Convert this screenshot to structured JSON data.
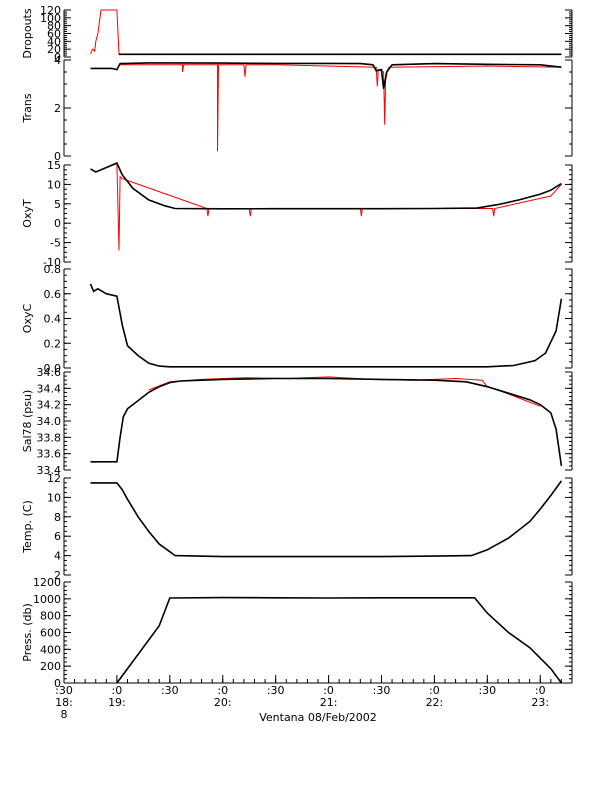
{
  "xlabel": "Ventana 08/Feb/2002",
  "colors": {
    "qc": "#ff0000",
    "data": "#000000",
    "axis": "#000000"
  },
  "x_ticks": [
    {
      "t": 18.5,
      "top": ":30",
      "mid": "18:",
      "bot": "8"
    },
    {
      "t": 19.0,
      "top": ":0",
      "mid": "19:",
      "bot": ""
    },
    {
      "t": 19.5,
      "top": ":30",
      "mid": "",
      "bot": ""
    },
    {
      "t": 20.0,
      "top": ":0",
      "mid": "20:",
      "bot": ""
    },
    {
      "t": 20.5,
      "top": ":30",
      "mid": "",
      "bot": ""
    },
    {
      "t": 21.0,
      "top": ":0",
      "mid": "21:",
      "bot": ""
    },
    {
      "t": 21.5,
      "top": ":30",
      "mid": "",
      "bot": ""
    },
    {
      "t": 22.0,
      "top": ":0",
      "mid": "22:",
      "bot": ""
    },
    {
      "t": 22.5,
      "top": ":30",
      "mid": "",
      "bot": ""
    },
    {
      "t": 23.0,
      "top": ":0",
      "mid": "23:",
      "bot": ""
    }
  ],
  "chart_data": [
    {
      "type": "line",
      "ylabel": "Dropouts",
      "ylim": [
        0,
        120
      ],
      "yticks": [
        0,
        20,
        40,
        60,
        80,
        100,
        120
      ],
      "yticklabels": [
        "0",
        "20",
        "40",
        "60",
        "80",
        "100",
        "120"
      ],
      "series": [
        {
          "role": "qc",
          "x": [
            18.75,
            18.77,
            18.79,
            18.8,
            18.82,
            18.85,
            18.95,
            18.98,
            19.0,
            19.02,
            19.6,
            20.8,
            21.5,
            22.2,
            23.2
          ],
          "y": [
            8,
            20,
            15,
            40,
            60,
            120,
            120,
            120,
            120,
            7,
            7,
            7,
            7,
            7,
            7
          ]
        },
        {
          "role": "data",
          "x": [
            19.02,
            19.5,
            20.0,
            20.5,
            21.0,
            21.5,
            22.0,
            22.5,
            23.0,
            23.2
          ],
          "y": [
            7,
            7,
            7,
            7,
            7,
            7,
            7,
            7,
            7,
            7
          ]
        }
      ]
    },
    {
      "type": "line",
      "ylabel": "Trans",
      "ylim": [
        0,
        4
      ],
      "yticks": [
        0,
        2,
        4
      ],
      "yticklabels": [
        "0",
        "2",
        "4"
      ],
      "series": [
        {
          "role": "qc",
          "x": [
            19.02,
            19.62,
            19.62,
            19.63,
            19.95,
            19.95,
            19.96,
            20.2,
            20.21,
            20.22,
            20.5,
            21.45,
            21.46,
            21.47,
            21.52,
            21.53,
            21.54,
            21.56,
            21.57,
            22.5,
            23.2
          ],
          "y": [
            3.8,
            3.8,
            3.5,
            3.8,
            3.8,
            0.2,
            3.8,
            3.8,
            3.3,
            3.8,
            3.8,
            3.7,
            2.9,
            3.6,
            3.5,
            1.3,
            3.4,
            3.6,
            3.7,
            3.75,
            3.7
          ]
        },
        {
          "role": "data",
          "x": [
            18.75,
            18.95,
            19.0,
            19.03,
            19.3,
            19.5,
            20.0,
            20.5,
            21.0,
            21.3,
            21.42,
            21.45,
            21.5,
            21.52,
            21.55,
            21.6,
            22.0,
            22.5,
            23.0,
            23.2
          ],
          "y": [
            3.65,
            3.65,
            3.6,
            3.85,
            3.88,
            3.88,
            3.87,
            3.86,
            3.86,
            3.85,
            3.8,
            3.55,
            3.6,
            2.8,
            3.5,
            3.8,
            3.85,
            3.82,
            3.8,
            3.7
          ]
        }
      ]
    },
    {
      "type": "line",
      "ylabel": "OxyT",
      "ylim": [
        -10,
        15
      ],
      "yticks": [
        -10,
        -5,
        0,
        5,
        10,
        15
      ],
      "yticklabels": [
        "-10",
        "-5",
        "0",
        "5",
        "10",
        "15"
      ],
      "series": [
        {
          "role": "qc",
          "x": [
            18.75,
            18.8,
            19.0,
            19.02,
            19.03,
            19.05,
            19.85,
            19.86,
            19.87,
            20.25,
            20.26,
            20.27,
            21.3,
            21.31,
            21.32,
            22.55,
            22.56,
            22.57,
            23.1,
            23.2
          ],
          "y": [
            14,
            13.2,
            15.5,
            -7,
            12,
            11.5,
            3.8,
            1.8,
            3.8,
            3.8,
            1.8,
            3.8,
            3.8,
            1.8,
            3.8,
            3.8,
            1.8,
            3.8,
            7,
            10
          ]
        },
        {
          "role": "data",
          "x": [
            18.75,
            18.8,
            19.0,
            19.05,
            19.15,
            19.3,
            19.45,
            19.55,
            20.0,
            20.5,
            21.0,
            21.5,
            22.0,
            22.4,
            22.6,
            22.8,
            23.0,
            23.1,
            23.2
          ],
          "y": [
            14,
            13.2,
            15.5,
            12.5,
            9,
            6,
            4.5,
            3.8,
            3.7,
            3.75,
            3.75,
            3.75,
            3.8,
            3.9,
            4.8,
            6,
            7.5,
            8.5,
            10.2
          ]
        }
      ]
    },
    {
      "type": "line",
      "ylabel": "OxyC",
      "ylim": [
        0,
        0.8
      ],
      "yticks": [
        0,
        0.2,
        0.4,
        0.6,
        0.8
      ],
      "yticklabels": [
        "0.0",
        "0.2",
        "0.4",
        "0.6",
        "0.8"
      ],
      "series": [
        {
          "role": "qc",
          "x": [
            18.75,
            18.78,
            18.82,
            18.9,
            19.0
          ],
          "y": [
            0.68,
            0.62,
            0.64,
            0.6,
            0.58
          ]
        },
        {
          "role": "data",
          "x": [
            18.75,
            18.78,
            18.82,
            18.9,
            19.0,
            19.05,
            19.1,
            19.2,
            19.3,
            19.4,
            19.5,
            20.0,
            21.0,
            22.0,
            22.5,
            22.75,
            22.95,
            23.05,
            23.15,
            23.2
          ],
          "y": [
            0.68,
            0.62,
            0.64,
            0.6,
            0.58,
            0.35,
            0.18,
            0.1,
            0.04,
            0.015,
            0.01,
            0.01,
            0.01,
            0.01,
            0.01,
            0.02,
            0.06,
            0.12,
            0.3,
            0.56
          ]
        }
      ]
    },
    {
      "type": "line",
      "ylabel": "Sal78 (psu)",
      "ylim": [
        33.4,
        34.6
      ],
      "yticks": [
        33.4,
        33.6,
        33.8,
        34.0,
        34.2,
        34.4,
        34.6
      ],
      "yticklabels": [
        "33.4",
        "33.6",
        "33.8",
        "34.0",
        "34.2",
        "34.4",
        "34.6"
      ],
      "series": [
        {
          "role": "qc",
          "x": [
            19.3,
            19.5,
            19.8,
            20.2,
            20.6,
            21.0,
            21.4,
            21.8,
            22.2,
            22.45,
            22.5,
            22.6,
            22.8,
            23.0
          ],
          "y": [
            34.38,
            34.48,
            34.51,
            34.53,
            34.52,
            34.54,
            34.51,
            34.5,
            34.52,
            34.5,
            34.42,
            34.38,
            34.28,
            34.18
          ]
        },
        {
          "role": "data",
          "x": [
            18.75,
            18.95,
            19.0,
            19.03,
            19.06,
            19.1,
            19.2,
            19.3,
            19.4,
            19.5,
            19.6,
            19.8,
            20.0,
            20.5,
            21.0,
            21.5,
            22.0,
            22.3,
            22.5,
            22.7,
            22.9,
            23.0,
            23.1,
            23.15,
            23.2
          ],
          "y": [
            33.5,
            33.5,
            33.5,
            33.8,
            34.05,
            34.15,
            34.25,
            34.35,
            34.42,
            34.47,
            34.49,
            34.5,
            34.51,
            34.52,
            34.52,
            34.51,
            34.5,
            34.48,
            34.42,
            34.34,
            34.26,
            34.2,
            34.1,
            33.9,
            33.45
          ]
        }
      ]
    },
    {
      "type": "line",
      "ylabel": "Temp. (C)",
      "ylim": [
        2,
        12
      ],
      "yticks": [
        2,
        4,
        6,
        8,
        10,
        12
      ],
      "yticklabels": [
        "2",
        "4",
        "6",
        "8",
        "10",
        "12"
      ],
      "series": [
        {
          "role": "qc",
          "x": [
            18.75,
            19.0
          ],
          "y": [
            11.5,
            11.5
          ]
        },
        {
          "role": "data",
          "x": [
            18.75,
            19.0,
            19.05,
            19.1,
            19.2,
            19.3,
            19.4,
            19.5,
            19.55,
            20.0,
            20.5,
            21.0,
            21.5,
            22.0,
            22.35,
            22.5,
            22.7,
            22.9,
            23.0,
            23.1,
            23.2
          ],
          "y": [
            11.5,
            11.5,
            10.8,
            9.8,
            8.0,
            6.5,
            5.2,
            4.4,
            4.0,
            3.9,
            3.9,
            3.9,
            3.9,
            3.95,
            4.0,
            4.6,
            5.8,
            7.5,
            8.8,
            10.2,
            11.7
          ]
        }
      ]
    },
    {
      "type": "line",
      "ylabel": "Press. (db)",
      "ylim": [
        0,
        1200
      ],
      "yticks": [
        0,
        200,
        400,
        600,
        800,
        1000,
        1200
      ],
      "yticklabels": [
        "0",
        "200",
        "400",
        "600",
        "800",
        "1000",
        "1200"
      ],
      "series": [
        {
          "role": "qc",
          "x": [
            18.75,
            18.95
          ],
          "y": [
            0,
            0
          ]
        },
        {
          "role": "data",
          "x": [
            19.0,
            19.2,
            19.4,
            19.5,
            20.0,
            20.5,
            21.0,
            21.5,
            22.0,
            22.38,
            22.5,
            22.7,
            22.9,
            23.1,
            23.2
          ],
          "y": [
            0,
            340,
            680,
            1010,
            1015,
            1012,
            1010,
            1012,
            1012,
            1012,
            830,
            600,
            420,
            170,
            0
          ]
        }
      ]
    }
  ]
}
